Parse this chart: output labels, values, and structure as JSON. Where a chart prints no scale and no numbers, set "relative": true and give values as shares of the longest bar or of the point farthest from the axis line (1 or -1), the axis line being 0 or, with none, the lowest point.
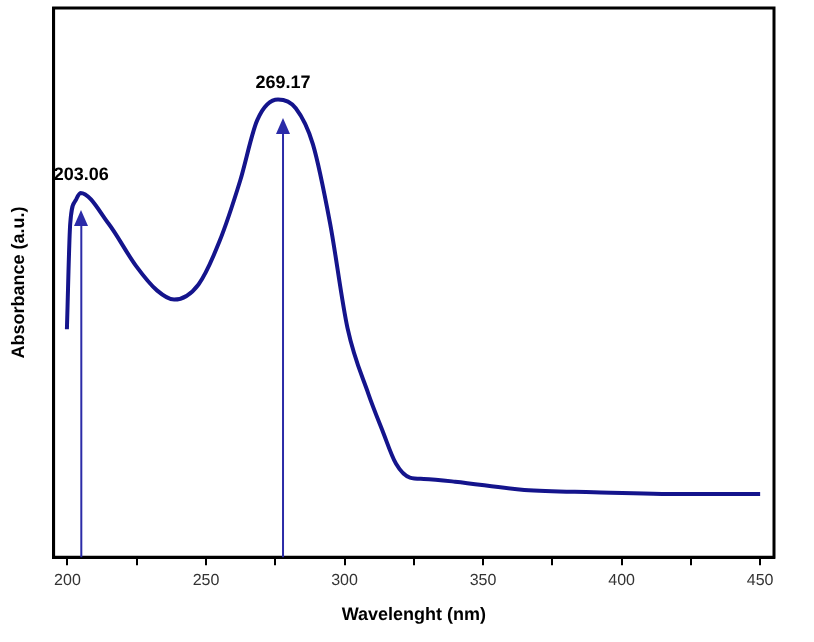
{
  "chart_data": {
    "type": "line",
    "xlabel": "Wavelenght (nm)",
    "ylabel": "Absorbance (a.u.)",
    "relative": true,
    "tick_labels": "x",
    "grid": false,
    "legend": false,
    "marker": "none",
    "line_style": "solid",
    "xlim": [
      195,
      455
    ],
    "xticks": [
      200,
      {
        "value": 225,
        "label": null
      },
      250,
      {
        "value": 275,
        "label": null
      },
      300,
      {
        "value": 325,
        "label": null
      },
      350,
      {
        "value": 375,
        "label": null
      },
      400,
      {
        "value": 425,
        "label": null
      },
      450
    ],
    "series": [
      {
        "color": "#14148c",
        "x": [
          199.8,
          201,
          203,
          204.7,
          214.8,
          224.8,
          232.3,
          238.5,
          247.3,
          254.8,
          262.3,
          268.5,
          276,
          282.4,
          288.6,
          294.8,
          301.1,
          308.6,
          313.6,
          318.6,
          323.6,
          328.6,
          339.9,
          364.9,
          390,
          422.4,
          450
        ],
        "values": [
          0.498,
          0.729,
          0.78,
          0.796,
          0.729,
          0.636,
          0.583,
          0.563,
          0.596,
          0.689,
          0.822,
          0.955,
          1,
          0.981,
          0.902,
          0.729,
          0.5,
          0.357,
          0.278,
          0.204,
          0.174,
          0.171,
          0.165,
          0.147,
          0.142,
          0.138,
          0.138
        ]
      }
    ],
    "ref_lines": [
      {
        "axis": "x",
        "value": 205,
        "color": "#2b2ba8"
      },
      {
        "axis": "x",
        "value": 277.8,
        "color": "#2b2ba8"
      }
    ],
    "annotations": [
      "203.06",
      "269.17"
    ]
  }
}
